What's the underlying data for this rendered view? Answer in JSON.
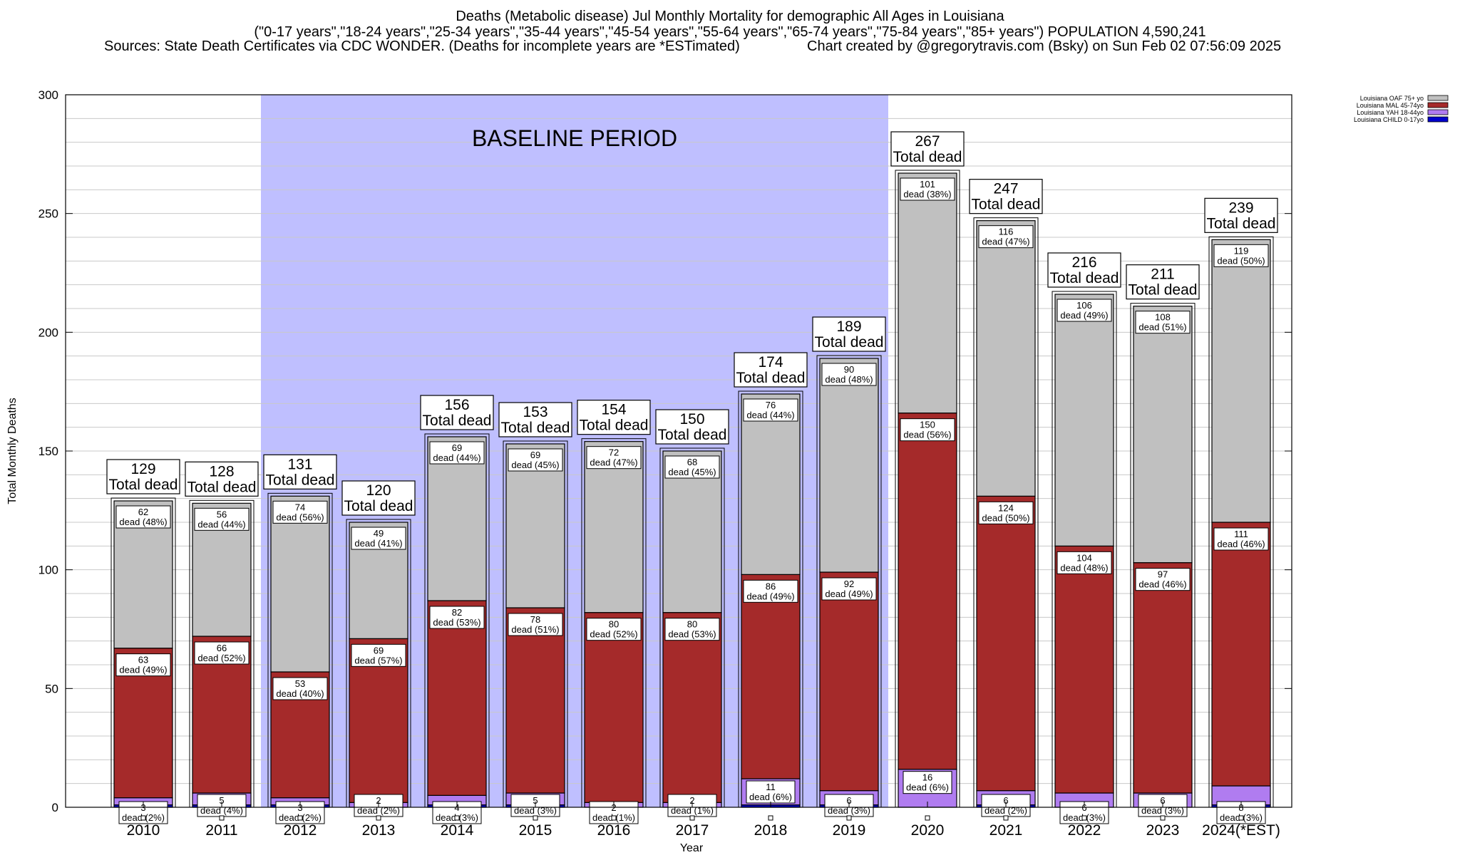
{
  "header": {
    "title": "Deaths (Metabolic disease) Jul Monthly Mortality for demographic All Ages in Louisiana",
    "subtitle": "(\"0-17 years\",\"18-24 years\",\"25-34 years\",\"35-44 years\",\"45-54 years\",\"55-64 years\",\"65-74 years\",\"75-84 years\",\"85+ years\") POPULATION 4,590,241",
    "sources": "Sources: State Death Certificates via CDC WONDER. (Deaths for incomplete years are *ESTimated)",
    "credit": "Chart created by @gregorytravis.com (Bsky) on Sun Feb 02 07:56:09 2025"
  },
  "chart_data": {
    "type": "bar",
    "stacked": true,
    "xlabel": "Year",
    "ylabel": "Total Monthly Deaths",
    "ylim": [
      0,
      300
    ],
    "yticks": [
      0,
      50,
      100,
      150,
      200,
      250,
      300
    ],
    "grid": true,
    "legend_position": "top-right",
    "baseline_label": "BASELINE PERIOD",
    "baseline_range": [
      "2012",
      "2019"
    ],
    "categories": [
      "2010",
      "2011",
      "2012",
      "2013",
      "2014",
      "2015",
      "2016",
      "2017",
      "2018",
      "2019",
      "2020",
      "2021",
      "2022",
      "2023",
      "2024(*EST)"
    ],
    "totals": [
      129,
      128,
      131,
      120,
      156,
      153,
      154,
      150,
      174,
      189,
      267,
      247,
      216,
      211,
      239
    ],
    "total_suffix": "Total dead",
    "dead_word": "dead",
    "series": [
      {
        "name": "Louisiana CHILD 0-17yo",
        "color": "#0000cc",
        "values": [
          1,
          1,
          1,
          0,
          1,
          1,
          0,
          0,
          1,
          1,
          0,
          1,
          0,
          0,
          1
        ],
        "labels": [
          null,
          null,
          null,
          null,
          null,
          null,
          null,
          null,
          null,
          null,
          null,
          null,
          null,
          null,
          null
        ]
      },
      {
        "name": "Louisiana YAH 18-44yo",
        "color": "#b07cf0",
        "values": [
          3,
          5,
          3,
          2,
          4,
          5,
          2,
          2,
          11,
          6,
          16,
          6,
          6,
          6,
          8
        ],
        "labels": [
          "(2%)",
          "(4%)",
          "(2%)",
          "(2%)",
          "(3%)",
          "(3%)",
          "(1%)",
          "(1%)",
          "(6%)",
          "(3%)",
          "(6%)",
          "(2%)",
          "(3%)",
          "(3%)",
          "(3%)"
        ]
      },
      {
        "name": "Louisiana MAL 45-74yo",
        "color": "#a52a2a",
        "values": [
          63,
          66,
          53,
          69,
          82,
          78,
          80,
          80,
          86,
          92,
          150,
          124,
          104,
          97,
          111
        ],
        "labels": [
          "(49%)",
          "(52%)",
          "(40%)",
          "(57%)",
          "(53%)",
          "(51%)",
          "(52%)",
          "(53%)",
          "(49%)",
          "(49%)",
          "(56%)",
          "(50%)",
          "(48%)",
          "(46%)",
          "(46%)"
        ]
      },
      {
        "name": "Louisiana OAF 75+ yo",
        "color": "#c0c0c0",
        "values": [
          62,
          56,
          74,
          49,
          69,
          69,
          72,
          68,
          76,
          90,
          101,
          116,
          106,
          108,
          119
        ],
        "labels": [
          "(48%)",
          "(44%)",
          "(56%)",
          "(41%)",
          "(44%)",
          "(45%)",
          "(47%)",
          "(45%)",
          "(44%)",
          "(48%)",
          "(38%)",
          "(47%)",
          "(49%)",
          "(51%)",
          "(50%)"
        ]
      }
    ]
  }
}
